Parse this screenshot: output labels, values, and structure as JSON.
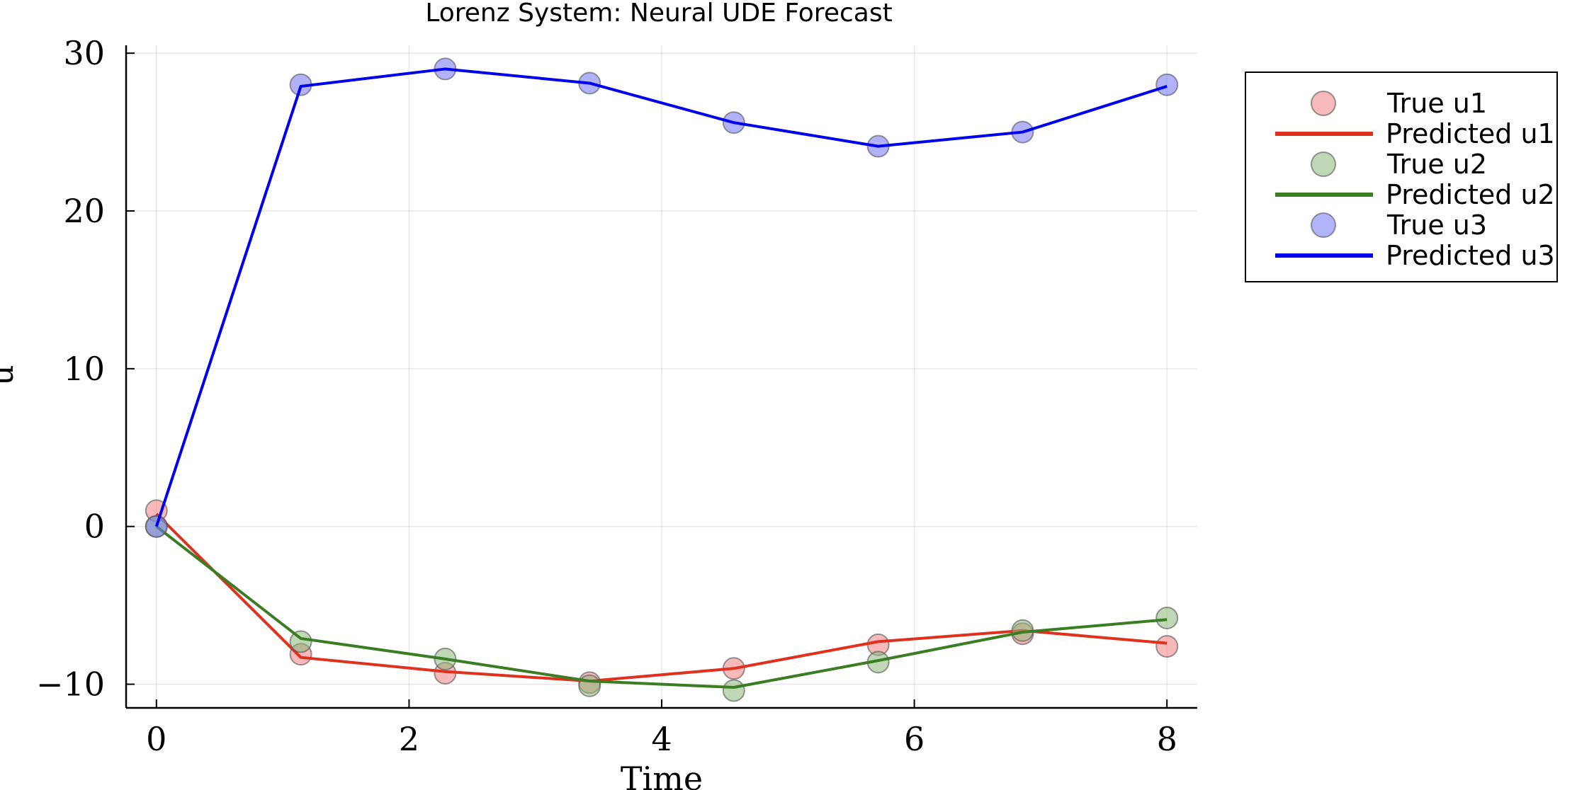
{
  "chart_data": {
    "type": "scatter+line",
    "title": "Lorenz System: Neural UDE Forecast",
    "xlabel": "Time",
    "ylabel": "u",
    "xlim": [
      -0.24,
      8.24
    ],
    "ylim": [
      -11.5,
      30.5
    ],
    "xticks": [
      0,
      2,
      4,
      6,
      8
    ],
    "yticks": [
      -10,
      0,
      10,
      20,
      30
    ],
    "ytick_labels": [
      "−10",
      "0",
      "10",
      "20",
      "30"
    ],
    "grid": true,
    "legend_position": "outside top-right",
    "x": [
      0,
      1.143,
      2.286,
      3.429,
      4.571,
      5.714,
      6.857,
      8.0
    ],
    "series": [
      {
        "name": "u1",
        "true_label": "True u1",
        "pred_label": "Predicted u1",
        "line_color": "#e0301e",
        "marker_color": "#f08080",
        "true": [
          1.0,
          -8.1,
          -9.3,
          -9.9,
          -9.0,
          -7.5,
          -6.8,
          -7.6
        ],
        "predicted": [
          0.8,
          -8.3,
          -9.2,
          -9.8,
          -9.0,
          -7.3,
          -6.6,
          -7.4
        ]
      },
      {
        "name": "u2",
        "true_label": "True u2",
        "pred_label": "Predicted u2",
        "line_color": "#3a7d22",
        "marker_color": "#8ab87a",
        "true": [
          0.0,
          -7.3,
          -8.4,
          -10.1,
          -10.4,
          -8.6,
          -6.6,
          -5.8
        ],
        "predicted": [
          0.0,
          -7.1,
          -8.4,
          -9.8,
          -10.2,
          -8.5,
          -6.7,
          -5.9
        ]
      },
      {
        "name": "u3",
        "true_label": "True u3",
        "pred_label": "Predicted u3",
        "line_color": "#0000ee",
        "marker_color": "#7272f5",
        "true": [
          0.0,
          28.0,
          29.0,
          28.1,
          25.6,
          24.1,
          25.0,
          28.0
        ],
        "predicted": [
          0.0,
          27.9,
          29.0,
          28.1,
          25.6,
          24.1,
          25.0,
          27.9
        ]
      }
    ]
  }
}
